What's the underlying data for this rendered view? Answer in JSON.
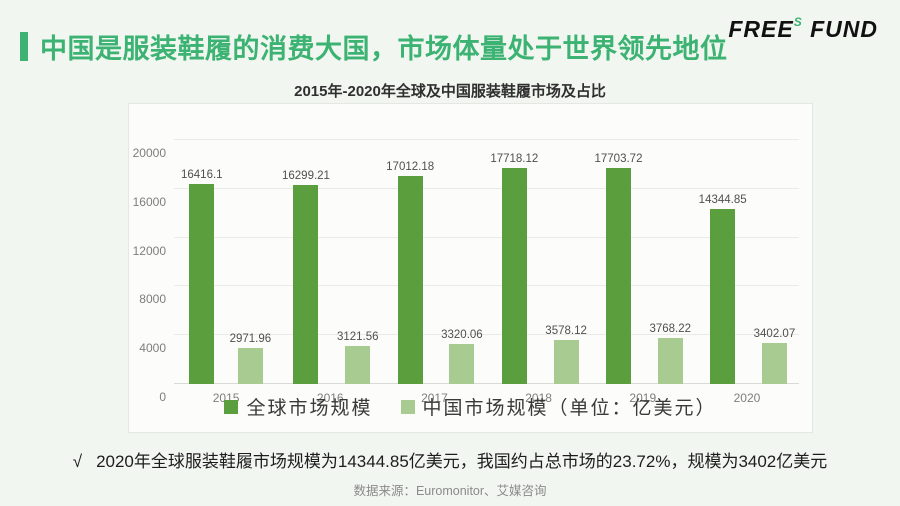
{
  "header": {
    "title": "中国是服装鞋履的消费大国，市场体量处于世界领先地位",
    "logo": {
      "word1": "FREE",
      "sup": "S",
      "word2": "FUND"
    }
  },
  "chart_data": {
    "type": "bar",
    "title": "2015年-2020年全球及中国服装鞋履市场及占比",
    "categories": [
      "2015",
      "2016",
      "2017",
      "2018",
      "2019",
      "2020"
    ],
    "series": [
      {
        "name": "全球市场规模",
        "color": "#5a9e3e",
        "values": [
          16416.1,
          16299.21,
          17012.18,
          17718.12,
          17703.72,
          14344.85
        ]
      },
      {
        "name": "中国市场规模（单位：亿美元）",
        "color": "#a8cb92",
        "values": [
          2971.96,
          3121.56,
          3320.06,
          3578.12,
          3768.22,
          3402.07
        ]
      }
    ],
    "xlabel": "",
    "ylabel": "",
    "ylim": [
      0,
      20000
    ],
    "y_ticks": [
      0,
      4000,
      8000,
      12000,
      16000,
      20000
    ],
    "grid": true,
    "legend_position": "bottom-inside"
  },
  "note": {
    "check": "√",
    "text": "2020年全球服装鞋履市场规模为14344.85亿美元，我国约占总市场的23.72%，规模为3402亿美元"
  },
  "source": "数据来源：Euromonitor、艾媒咨询",
  "colors": {
    "accent_green": "#3cb372",
    "bar_dark_green": "#5a9e3e",
    "bar_light_green": "#a8cb92",
    "background": "#f2f6f1"
  }
}
